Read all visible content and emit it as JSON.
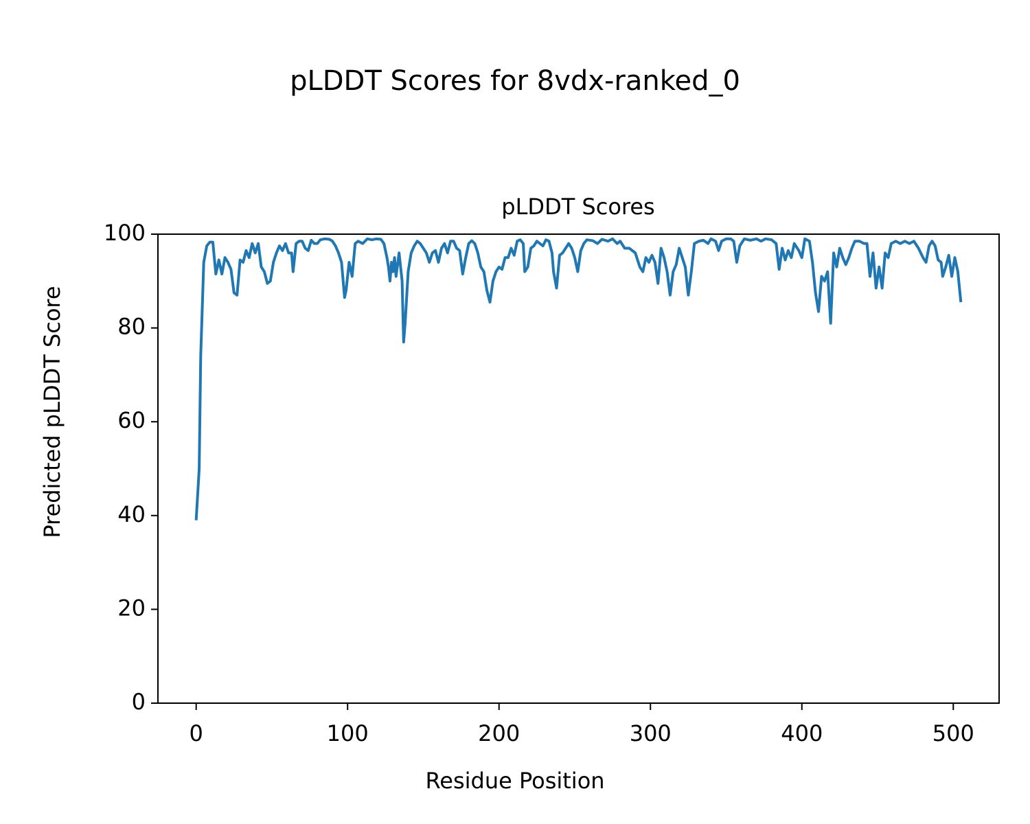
{
  "chart_data": {
    "type": "line",
    "title": "pLDDT Scores for 8vdx-ranked_0",
    "subtitle": "pLDDT Scores",
    "xlabel": "Residue Position",
    "ylabel": "Predicted pLDDT Score",
    "color": "#1f77b4",
    "xlim": [
      -25.25,
      530.25
    ],
    "ylim": [
      0,
      100
    ],
    "xticks": [
      0,
      100,
      200,
      300,
      400,
      500
    ],
    "yticks": [
      0,
      20,
      40,
      60,
      80,
      100
    ],
    "x": [
      0,
      2,
      3,
      5,
      7,
      9,
      11,
      13,
      15,
      17,
      19,
      21,
      23,
      25,
      27,
      29,
      31,
      33,
      35,
      37,
      39,
      41,
      43,
      45,
      47,
      49,
      51,
      53,
      55,
      57,
      59,
      61,
      63,
      64,
      66,
      68,
      70,
      72,
      74,
      76,
      78,
      80,
      82,
      85,
      88,
      90,
      92,
      94,
      96,
      98,
      99,
      101,
      103,
      105,
      107,
      110,
      113,
      116,
      119,
      122,
      124,
      126,
      127,
      128,
      129,
      130,
      131,
      132,
      134,
      136,
      137,
      138,
      140,
      142,
      144,
      146,
      148,
      150,
      152,
      154,
      156,
      158,
      160,
      162,
      164,
      166,
      168,
      170,
      172,
      174,
      176,
      178,
      180,
      182,
      184,
      186,
      188,
      190,
      192,
      194,
      196,
      198,
      200,
      202,
      204,
      206,
      208,
      210,
      212,
      214,
      216,
      217,
      219,
      221,
      223,
      225,
      227,
      229,
      231,
      233,
      235,
      236,
      238,
      240,
      242,
      244,
      246,
      248,
      250,
      252,
      254,
      256,
      258,
      262,
      265,
      268,
      272,
      275,
      278,
      280,
      283,
      286,
      290,
      293,
      295,
      297,
      299,
      301,
      303,
      305,
      307,
      309,
      311,
      313,
      315,
      317,
      319,
      321,
      323,
      325,
      327,
      329,
      332,
      335,
      338,
      340,
      343,
      345,
      347,
      350,
      353,
      355,
      357,
      359,
      362,
      366,
      370,
      373,
      376,
      380,
      383,
      385,
      387,
      389,
      391,
      393,
      395,
      398,
      400,
      402,
      405,
      407,
      409,
      411,
      413,
      415,
      417,
      419,
      421,
      423,
      425,
      427,
      429,
      431,
      433,
      435,
      438,
      441,
      443,
      445,
      447,
      449,
      451,
      453,
      455,
      457,
      459,
      462,
      465,
      468,
      471,
      474,
      477,
      480,
      482,
      484,
      486,
      488,
      490,
      492,
      493,
      495,
      497,
      499,
      501,
      503,
      505
    ],
    "values": [
      39,
      50,
      74,
      94,
      97.5,
      98.3,
      98.3,
      91.5,
      94.5,
      91.5,
      95,
      94,
      92.5,
      87.5,
      87,
      94.5,
      94,
      96.5,
      95,
      98,
      96,
      98,
      93,
      92,
      89.5,
      90,
      94,
      96,
      97.5,
      96.5,
      98,
      96,
      96,
      92,
      98,
      98.5,
      98.5,
      97,
      96.5,
      98.7,
      98,
      98,
      98.8,
      99,
      98.9,
      98.5,
      97.5,
      96,
      94,
      86.5,
      88,
      94,
      91,
      98,
      98.5,
      98,
      99,
      98.8,
      99,
      98.9,
      98,
      95,
      93,
      90,
      94,
      92,
      95,
      91,
      96,
      90,
      77,
      81,
      92,
      96,
      97.5,
      98.5,
      98,
      97,
      96,
      94,
      96,
      96.5,
      94,
      97,
      98,
      96,
      98.5,
      98.5,
      97,
      96.5,
      91.5,
      95,
      98,
      98.6,
      98,
      96,
      93,
      92,
      88,
      85.5,
      90,
      92,
      93,
      92.5,
      95,
      95,
      97,
      95.5,
      98.5,
      98.8,
      98,
      92,
      93,
      97,
      97.5,
      98.5,
      98,
      97.5,
      98.8,
      98.5,
      96,
      92,
      88.5,
      95.5,
      96,
      97,
      98,
      97,
      95,
      92,
      96.5,
      98,
      98.8,
      98.6,
      98,
      98.9,
      98.5,
      99,
      98,
      98.5,
      97,
      97,
      96,
      93,
      92,
      95,
      94,
      95.5,
      94,
      89.5,
      97,
      95,
      92,
      87,
      92,
      93.5,
      97,
      95,
      93,
      87,
      92,
      98,
      98.5,
      98.7,
      98,
      99,
      98.5,
      96.5,
      98.5,
      99,
      99,
      98.5,
      94,
      97.5,
      99,
      98.7,
      99,
      98.5,
      99,
      98.8,
      98,
      92.5,
      97,
      94.5,
      96.5,
      95,
      98,
      96.5,
      95,
      99,
      98.5,
      94,
      87.5,
      83.5,
      91,
      90,
      92,
      81,
      96,
      93,
      97,
      95,
      93.5,
      95,
      97,
      98.5,
      98.5,
      98,
      98,
      91,
      96,
      88.5,
      93,
      88.5,
      96,
      95,
      98,
      98.5,
      98,
      98.5,
      98,
      98.5,
      97,
      95,
      94,
      97.5,
      98.5,
      97.5,
      94.5,
      94,
      91,
      93,
      95.5,
      91,
      95,
      92,
      85.5
    ]
  }
}
